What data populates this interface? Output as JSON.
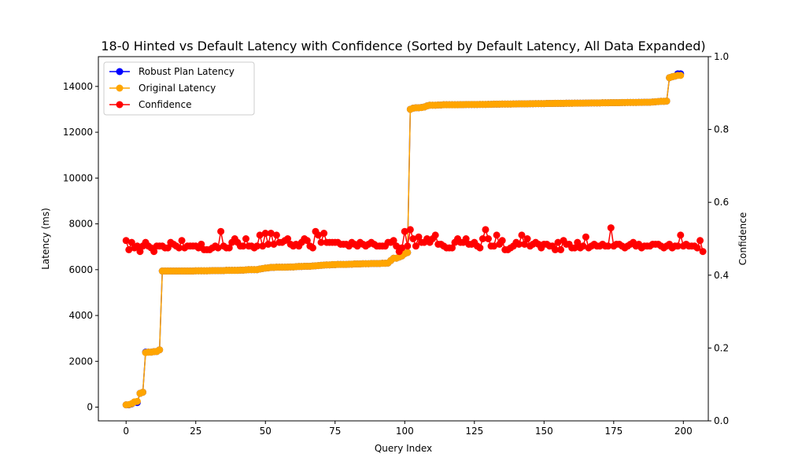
{
  "chart_data": {
    "type": "line",
    "title": "18-0 Hinted vs Default Latency with Confidence (Sorted by Default Latency, All Data Expanded)",
    "xlabel": "Query Index",
    "ylabel": "Latency (ms)",
    "y2label": "Confidence",
    "xlim": [
      -9.95,
      208.95
    ],
    "ylim": [
      -600,
      15300
    ],
    "y2lim": [
      0,
      1
    ],
    "x_ticks": [
      0,
      25,
      50,
      75,
      100,
      125,
      150,
      175,
      200
    ],
    "y_ticks": [
      0,
      2000,
      4000,
      6000,
      8000,
      10000,
      12000,
      14000
    ],
    "y2_ticks": [
      0.0,
      0.2,
      0.4,
      0.6,
      0.8,
      1.0
    ],
    "grid": false,
    "legend_position": "top-left",
    "series": [
      {
        "name": "Robust Plan Latency",
        "color": "#0000ff",
        "axis": "left",
        "values": [
          100,
          100,
          140,
          220,
          200,
          600,
          650,
          2400,
          2400,
          2400,
          2420,
          2430,
          2500,
          5940,
          5940,
          5940,
          5940,
          5940,
          5940,
          5940,
          5940,
          5940,
          5940,
          5940,
          5940,
          5950,
          5950,
          5950,
          5950,
          5950,
          5955,
          5960,
          5960,
          5960,
          5960,
          5960,
          5970,
          5970,
          5970,
          5970,
          5970,
          5980,
          5980,
          5990,
          6000,
          6000,
          6000,
          6000,
          6030,
          6050,
          6070,
          6080,
          6100,
          6100,
          6110,
          6110,
          6110,
          6110,
          6115,
          6120,
          6120,
          6130,
          6140,
          6140,
          6150,
          6150,
          6150,
          6160,
          6170,
          6180,
          6190,
          6200,
          6210,
          6210,
          6220,
          6220,
          6230,
          6230,
          6230,
          6230,
          6240,
          6240,
          6250,
          6250,
          6250,
          6260,
          6260,
          6260,
          6270,
          6270,
          6270,
          6270,
          6280,
          6280,
          6290,
          6400,
          6500,
          6500,
          6550,
          6600,
          6700,
          6750,
          13000,
          13050,
          13070,
          13070,
          13080,
          13100,
          13150,
          13180,
          13180,
          13180,
          13190,
          13190,
          13200,
          13200,
          13200,
          13200,
          13200,
          13200,
          13205,
          13205,
          13210,
          13210,
          13210,
          13210,
          13210,
          13215,
          13215,
          13215,
          13220,
          13220,
          13225,
          13225,
          13225,
          13230,
          13230,
          13230,
          13230,
          13235,
          13235,
          13240,
          13240,
          13240,
          13240,
          13245,
          13245,
          13250,
          13250,
          13250,
          13250,
          13255,
          13255,
          13255,
          13260,
          13260,
          13260,
          13260,
          13265,
          13265,
          13265,
          13270,
          13270,
          13270,
          13270,
          13275,
          13275,
          13280,
          13280,
          13280,
          13280,
          13285,
          13285,
          13285,
          13290,
          13290,
          13290,
          13290,
          13295,
          13295,
          13300,
          13300,
          13300,
          13300,
          13305,
          13305,
          13310,
          13310,
          13310,
          13320,
          13330,
          13340,
          13350,
          13350,
          13360,
          14380,
          14420,
          14450,
          14550,
          14550
        ],
        "marker": "circle"
      },
      {
        "name": "Original Latency",
        "color": "#ffa500",
        "axis": "left",
        "values": [
          100,
          110,
          150,
          230,
          250,
          600,
          650,
          2380,
          2400,
          2400,
          2420,
          2430,
          2500,
          5940,
          5940,
          5940,
          5940,
          5940,
          5940,
          5940,
          5940,
          5940,
          5940,
          5940,
          5940,
          5950,
          5950,
          5950,
          5950,
          5950,
          5955,
          5960,
          5960,
          5960,
          5960,
          5960,
          5970,
          5970,
          5970,
          5970,
          5970,
          5980,
          5980,
          5990,
          6000,
          6000,
          6000,
          6000,
          6030,
          6050,
          6070,
          6080,
          6100,
          6100,
          6110,
          6110,
          6110,
          6110,
          6115,
          6120,
          6120,
          6130,
          6140,
          6140,
          6150,
          6150,
          6150,
          6160,
          6170,
          6180,
          6190,
          6200,
          6210,
          6210,
          6220,
          6220,
          6230,
          6230,
          6230,
          6230,
          6240,
          6240,
          6250,
          6250,
          6250,
          6260,
          6260,
          6260,
          6270,
          6270,
          6270,
          6270,
          6280,
          6280,
          6290,
          6400,
          6500,
          6500,
          6550,
          6600,
          6700,
          6750,
          13000,
          13050,
          13070,
          13070,
          13080,
          13100,
          13150,
          13180,
          13180,
          13180,
          13190,
          13190,
          13200,
          13200,
          13200,
          13200,
          13200,
          13200,
          13205,
          13205,
          13210,
          13210,
          13210,
          13210,
          13210,
          13215,
          13215,
          13215,
          13220,
          13220,
          13225,
          13225,
          13225,
          13230,
          13230,
          13230,
          13230,
          13235,
          13235,
          13240,
          13240,
          13240,
          13240,
          13245,
          13245,
          13250,
          13250,
          13250,
          13250,
          13255,
          13255,
          13255,
          13260,
          13260,
          13260,
          13260,
          13265,
          13265,
          13265,
          13270,
          13270,
          13270,
          13270,
          13275,
          13275,
          13280,
          13280,
          13280,
          13280,
          13285,
          13285,
          13285,
          13290,
          13290,
          13290,
          13290,
          13295,
          13295,
          13300,
          13300,
          13300,
          13300,
          13305,
          13305,
          13310,
          13310,
          13310,
          13320,
          13330,
          13340,
          13350,
          13350,
          13360,
          14380,
          14420,
          14450,
          14480,
          14480
        ],
        "marker": "circle"
      },
      {
        "name": "Confidence",
        "color": "#ff0000",
        "axis": "right",
        "values": [
          0.495,
          0.47,
          0.49,
          0.475,
          0.48,
          0.465,
          0.48,
          0.49,
          0.48,
          0.475,
          0.465,
          0.48,
          0.48,
          0.48,
          0.475,
          0.475,
          0.49,
          0.485,
          0.48,
          0.475,
          0.495,
          0.475,
          0.48,
          0.48,
          0.48,
          0.48,
          0.475,
          0.485,
          0.47,
          0.47,
          0.47,
          0.475,
          0.48,
          0.475,
          0.52,
          0.48,
          0.475,
          0.475,
          0.49,
          0.5,
          0.49,
          0.48,
          0.48,
          0.5,
          0.48,
          0.48,
          0.475,
          0.48,
          0.51,
          0.48,
          0.515,
          0.485,
          0.515,
          0.485,
          0.51,
          0.49,
          0.49,
          0.495,
          0.5,
          0.485,
          0.48,
          0.485,
          0.48,
          0.49,
          0.5,
          0.495,
          0.48,
          0.475,
          0.52,
          0.51,
          0.49,
          0.515,
          0.49,
          0.49,
          0.49,
          0.49,
          0.49,
          0.485,
          0.485,
          0.485,
          0.48,
          0.49,
          0.485,
          0.48,
          0.49,
          0.485,
          0.48,
          0.485,
          0.49,
          0.485,
          0.48,
          0.48,
          0.48,
          0.48,
          0.49,
          0.49,
          0.495,
          0.48,
          0.465,
          0.475,
          0.52,
          0.48,
          0.525,
          0.5,
          0.48,
          0.505,
          0.49,
          0.49,
          0.5,
          0.49,
          0.5,
          0.51,
          0.485,
          0.485,
          0.48,
          0.475,
          0.475,
          0.475,
          0.49,
          0.5,
          0.49,
          0.49,
          0.5,
          0.485,
          0.485,
          0.49,
          0.48,
          0.475,
          0.5,
          0.525,
          0.5,
          0.48,
          0.48,
          0.51,
          0.485,
          0.495,
          0.47,
          0.47,
          0.475,
          0.48,
          0.49,
          0.485,
          0.51,
          0.485,
          0.5,
          0.48,
          0.485,
          0.49,
          0.485,
          0.475,
          0.485,
          0.485,
          0.48,
          0.48,
          0.47,
          0.49,
          0.47,
          0.495,
          0.485,
          0.485,
          0.475,
          0.475,
          0.49,
          0.475,
          0.48,
          0.505,
          0.475,
          0.48,
          0.485,
          0.48,
          0.48,
          0.485,
          0.48,
          0.48,
          0.53,
          0.48,
          0.485,
          0.485,
          0.48,
          0.475,
          0.48,
          0.485,
          0.49,
          0.48,
          0.485,
          0.475,
          0.48,
          0.48,
          0.48,
          0.485,
          0.485,
          0.485,
          0.48,
          0.475,
          0.48,
          0.485,
          0.475,
          0.48,
          0.48,
          0.51,
          0.48,
          0.485,
          0.48,
          0.48,
          0.48,
          0.475,
          0.495,
          0.465
        ],
        "marker": "circle"
      }
    ]
  }
}
